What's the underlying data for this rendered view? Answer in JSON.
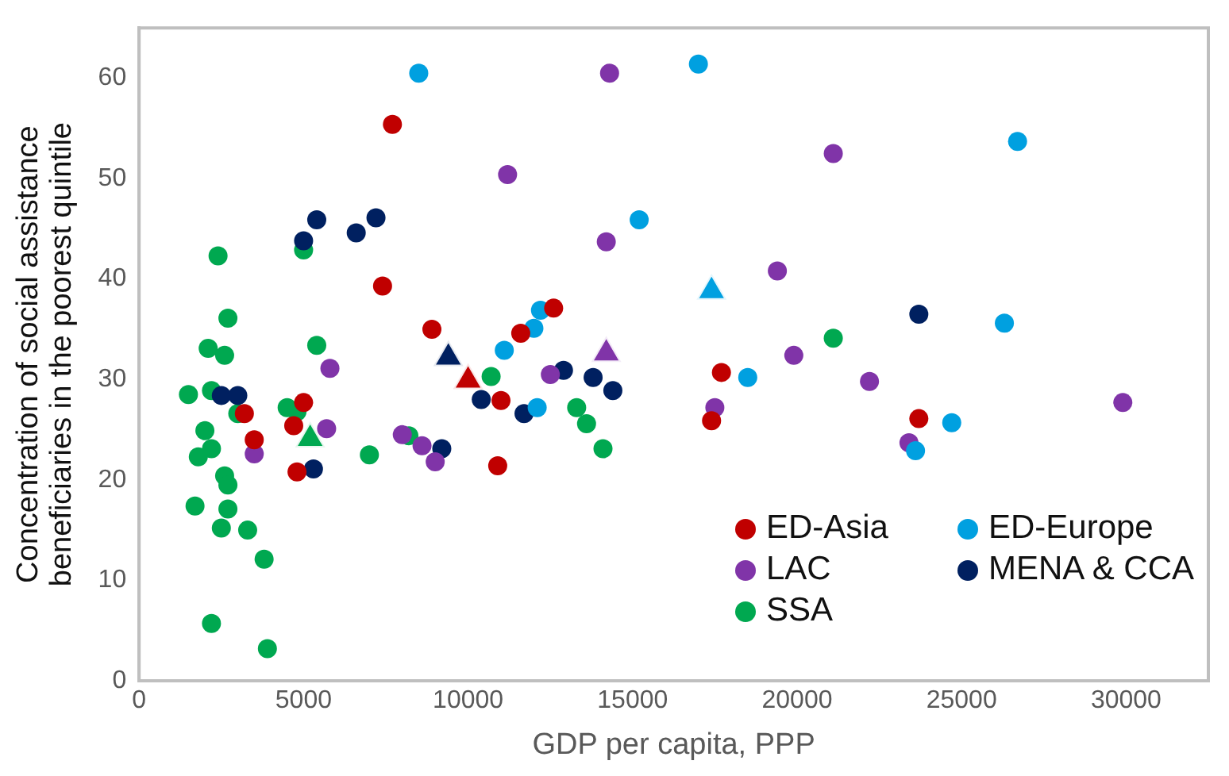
{
  "chart_data": {
    "type": "scatter",
    "xlabel": "GDP per capita, PPP",
    "ylabel": "Concentration of social assistance beneficiaries in the poorest quintile",
    "xlim": [
      0,
      32500
    ],
    "xticks": [
      0,
      5000,
      10000,
      15000,
      20000,
      25000,
      30000
    ],
    "ylim": [
      0,
      65
    ],
    "yticks": [
      0,
      10,
      20,
      30,
      40,
      50,
      60
    ],
    "grid": false,
    "legend": "bottom right",
    "marker": "circle",
    "series": [
      {
        "name": "ED-Asia",
        "color": "#c00000",
        "x": [
          7700,
          7400,
          8900,
          12600,
          11600,
          11000,
          3200,
          5000,
          4700,
          3500,
          10900,
          4800,
          17700,
          17400,
          23700
        ],
        "values": [
          55.4,
          39.3,
          35.0,
          37.1,
          34.6,
          27.9,
          26.6,
          27.7,
          25.4,
          24.0,
          21.4,
          20.8,
          30.7,
          25.9,
          26.1
        ]
      },
      {
        "name": "ED-Europe",
        "color": "#00a0e0",
        "x": [
          8500,
          17000,
          15200,
          12200,
          12000,
          11100,
          12100,
          18500,
          26700,
          26300,
          24700,
          23600
        ],
        "values": [
          60.5,
          61.4,
          45.9,
          36.9,
          35.1,
          32.9,
          27.2,
          30.2,
          53.7,
          35.6,
          25.7,
          22.9
        ]
      },
      {
        "name": "LAC",
        "color": "#8034a8",
        "x": [
          11200,
          5800,
          5700,
          3500,
          8000,
          8600,
          9000,
          14300,
          21100,
          14200,
          19400,
          19900,
          12500,
          17500,
          22200,
          29900,
          23400
        ],
        "values": [
          50.4,
          31.1,
          25.1,
          22.6,
          24.5,
          23.4,
          21.8,
          60.5,
          52.5,
          43.7,
          40.8,
          32.4,
          30.5,
          27.2,
          29.8,
          27.7,
          23.7
        ]
      },
      {
        "name": "MENA & CCA",
        "color": "#002060",
        "x": [
          5400,
          7200,
          6600,
          5000,
          10400,
          2500,
          3000,
          9200,
          5300,
          12900,
          13800,
          14400,
          11700,
          23700
        ],
        "values": [
          45.9,
          46.1,
          44.6,
          43.8,
          28.0,
          28.4,
          28.4,
          23.1,
          21.1,
          30.9,
          30.2,
          28.9,
          26.6,
          36.5
        ]
      },
      {
        "name": "SSA",
        "color": "#00a850",
        "x": [
          5000,
          2400,
          2700,
          2100,
          2600,
          5400,
          10700,
          1500,
          2200,
          3000,
          4500,
          4800,
          2000,
          2200,
          1800,
          8200,
          7000,
          2600,
          2700,
          1700,
          2700,
          2500,
          3300,
          3800,
          2200,
          3900,
          21100,
          13300,
          13600,
          14100
        ],
        "values": [
          42.9,
          42.3,
          36.1,
          33.1,
          32.4,
          33.4,
          30.3,
          28.5,
          28.9,
          26.6,
          27.2,
          26.8,
          24.9,
          23.1,
          22.3,
          24.4,
          22.5,
          20.4,
          19.5,
          17.4,
          17.1,
          15.2,
          15.0,
          12.1,
          5.7,
          3.2,
          34.1,
          27.2,
          25.6,
          23.1
        ]
      },
      {
        "color": "#c00000",
        "marker": "triangle",
        "x": [
          10000
        ],
        "values": [
          29.9
        ]
      },
      {
        "color": "#00a0e0",
        "marker": "triangle",
        "x": [
          17400
        ],
        "values": [
          38.8
        ]
      },
      {
        "color": "#8034a8",
        "marker": "triangle",
        "x": [
          14200
        ],
        "values": [
          32.6
        ]
      },
      {
        "color": "#002060",
        "marker": "triangle",
        "x": [
          9400
        ],
        "values": [
          32.2
        ]
      },
      {
        "color": "#00a850",
        "marker": "triangle",
        "x": [
          5200
        ],
        "values": [
          24.1
        ]
      }
    ]
  }
}
